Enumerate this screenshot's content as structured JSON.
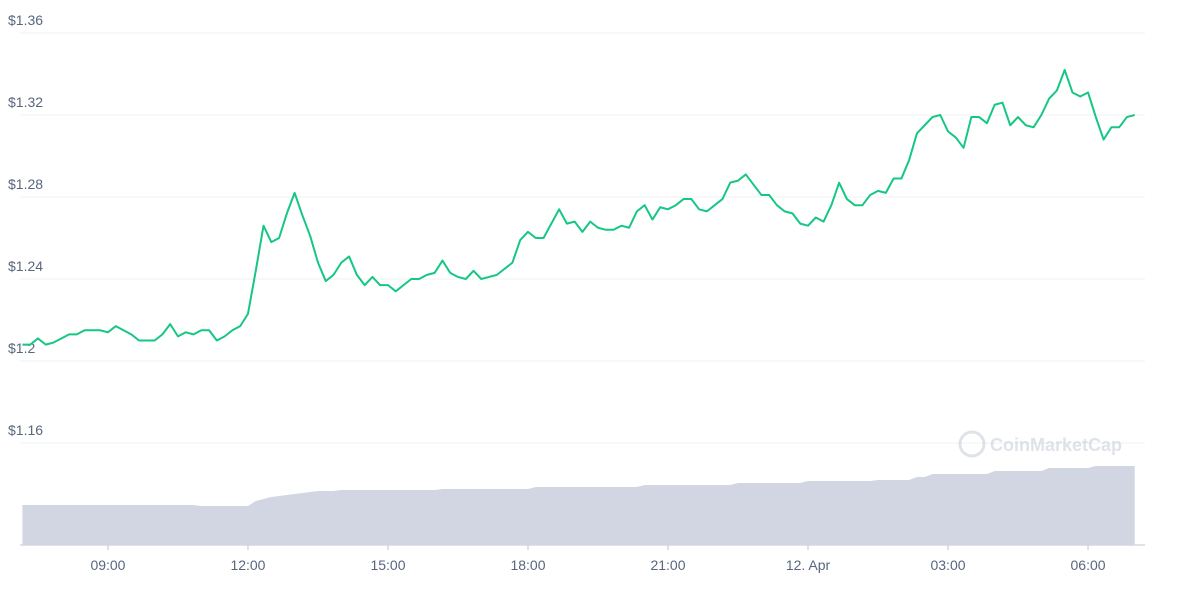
{
  "chart_data": {
    "type": "line",
    "watermark": "CoinMarketCap",
    "x": [
      "07:10",
      "07:20",
      "07:30",
      "07:40",
      "07:50",
      "08:00",
      "08:10",
      "08:20",
      "08:30",
      "08:40",
      "08:50",
      "09:00",
      "09:10",
      "09:20",
      "09:30",
      "09:40",
      "09:50",
      "10:00",
      "10:10",
      "10:20",
      "10:30",
      "10:40",
      "10:50",
      "11:00",
      "11:10",
      "11:20",
      "11:30",
      "11:40",
      "11:50",
      "12:00",
      "12:10",
      "12:20",
      "12:30",
      "12:40",
      "12:50",
      "13:00",
      "13:10",
      "13:20",
      "13:30",
      "13:40",
      "13:50",
      "14:00",
      "14:10",
      "14:20",
      "14:30",
      "14:40",
      "14:50",
      "15:00",
      "15:10",
      "15:20",
      "15:30",
      "15:40",
      "15:50",
      "16:00",
      "16:10",
      "16:20",
      "16:30",
      "16:40",
      "16:50",
      "17:00",
      "17:10",
      "17:20",
      "17:30",
      "17:40",
      "17:50",
      "18:00",
      "18:10",
      "18:20",
      "18:30",
      "18:40",
      "18:50",
      "19:00",
      "19:10",
      "19:20",
      "19:30",
      "19:40",
      "19:50",
      "20:00",
      "20:10",
      "20:20",
      "20:30",
      "20:40",
      "20:50",
      "21:00",
      "21:10",
      "21:20",
      "21:30",
      "21:40",
      "21:50",
      "22:00",
      "22:10",
      "22:20",
      "22:30",
      "22:40",
      "22:50",
      "23:00",
      "23:10",
      "23:20",
      "23:30",
      "23:40",
      "23:50",
      "00:00",
      "00:10",
      "00:20",
      "00:30",
      "00:40",
      "00:50",
      "01:00",
      "01:10",
      "01:20",
      "01:30",
      "01:40",
      "01:50",
      "02:00",
      "02:10",
      "02:20",
      "02:30",
      "02:40",
      "02:50",
      "03:00",
      "03:10",
      "03:20",
      "03:30",
      "03:40",
      "03:50",
      "04:00",
      "04:10",
      "04:20",
      "04:30",
      "04:40",
      "04:50",
      "05:00",
      "05:10",
      "05:20",
      "05:30",
      "05:40",
      "05:50",
      "06:00",
      "06:10",
      "06:20",
      "06:30",
      "06:40",
      "06:50",
      "07:00"
    ],
    "series": [
      {
        "color": "#16c784",
        "values": [
          1.208,
          1.208,
          1.211,
          1.208,
          1.209,
          1.211,
          1.213,
          1.213,
          1.215,
          1.215,
          1.215,
          1.214,
          1.217,
          1.215,
          1.213,
          1.21,
          1.21,
          1.21,
          1.213,
          1.218,
          1.212,
          1.214,
          1.213,
          1.215,
          1.215,
          1.21,
          1.212,
          1.215,
          1.217,
          1.223,
          1.244,
          1.266,
          1.258,
          1.26,
          1.272,
          1.282,
          1.271,
          1.261,
          1.248,
          1.239,
          1.242,
          1.248,
          1.251,
          1.242,
          1.237,
          1.241,
          1.237,
          1.237,
          1.234,
          1.237,
          1.24,
          1.24,
          1.242,
          1.243,
          1.249,
          1.243,
          1.241,
          1.24,
          1.244,
          1.24,
          1.241,
          1.242,
          1.245,
          1.248,
          1.259,
          1.263,
          1.26,
          1.26,
          1.267,
          1.274,
          1.267,
          1.268,
          1.263,
          1.268,
          1.265,
          1.264,
          1.264,
          1.266,
          1.265,
          1.273,
          1.276,
          1.269,
          1.275,
          1.274,
          1.276,
          1.279,
          1.279,
          1.274,
          1.273,
          1.276,
          1.279,
          1.287,
          1.288,
          1.291,
          1.286,
          1.281,
          1.281,
          1.276,
          1.273,
          1.272,
          1.267,
          1.266,
          1.27,
          1.268,
          1.276,
          1.287,
          1.279,
          1.276,
          1.276,
          1.281,
          1.283,
          1.282,
          1.289,
          1.289,
          1.298,
          1.311,
          1.315,
          1.319,
          1.32,
          1.312,
          1.309,
          1.304,
          1.319,
          1.319,
          1.316,
          1.325,
          1.326,
          1.315,
          1.319,
          1.315,
          1.314,
          1.32,
          1.328,
          1.332,
          1.342,
          1.331,
          1.329,
          1.331,
          1.319,
          1.308,
          1.314,
          1.314,
          1.319,
          1.32
        ]
      }
    ],
    "volume": {
      "color": "#d1d6e2",
      "ylim": [
        0,
        100
      ],
      "values": [
        40,
        40,
        40,
        40,
        40,
        40,
        40,
        40,
        40,
        40,
        40,
        40,
        40,
        40,
        40,
        40,
        40,
        40,
        40,
        40,
        40,
        40,
        40,
        39,
        39,
        39,
        39,
        39,
        39,
        39,
        44,
        46,
        48,
        49,
        50,
        51,
        52,
        53,
        54,
        54,
        54,
        55,
        55,
        55,
        55,
        55,
        55,
        55,
        55,
        55,
        55,
        55,
        55,
        55,
        56,
        56,
        56,
        56,
        56,
        56,
        56,
        56,
        56,
        56,
        56,
        56,
        58,
        58,
        58,
        58,
        58,
        58,
        58,
        58,
        58,
        58,
        58,
        58,
        58,
        58,
        60,
        60,
        60,
        60,
        60,
        60,
        60,
        60,
        60,
        60,
        60,
        60,
        62,
        62,
        62,
        62,
        62,
        62,
        62,
        62,
        62,
        64,
        64,
        64,
        64,
        64,
        64,
        64,
        64,
        64,
        65,
        65,
        65,
        65,
        65,
        68,
        68,
        71,
        71,
        71,
        71,
        71,
        71,
        71,
        71,
        74,
        74,
        74,
        74,
        74,
        74,
        74,
        77,
        77,
        77,
        77,
        77,
        77,
        79,
        79,
        79,
        79,
        79,
        79
      ]
    },
    "ylim": [
      1.16,
      1.36
    ],
    "yticks": [
      {
        "value": 1.36,
        "label": "$1.36"
      },
      {
        "value": 1.32,
        "label": "$1.32"
      },
      {
        "value": 1.28,
        "label": "$1.28"
      },
      {
        "value": 1.24,
        "label": "$1.24"
      },
      {
        "value": 1.2,
        "label": "$1.2"
      },
      {
        "value": 1.16,
        "label": "$1.16"
      }
    ],
    "xticks": [
      {
        "value": "09:00",
        "label": "09:00"
      },
      {
        "value": "12:00",
        "label": "12:00"
      },
      {
        "value": "15:00",
        "label": "15:00"
      },
      {
        "value": "18:00",
        "label": "18:00"
      },
      {
        "value": "21:00",
        "label": "21:00"
      },
      {
        "value": "00:00",
        "label": "12. Apr"
      },
      {
        "value": "03:00",
        "label": "03:00"
      },
      {
        "value": "06:00",
        "label": "06:00"
      }
    ],
    "grid": true
  }
}
